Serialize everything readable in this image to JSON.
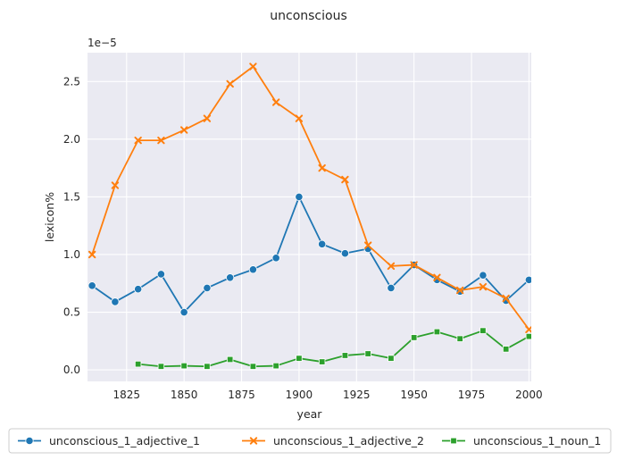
{
  "chart_data": {
    "type": "line",
    "title": "unconscious",
    "xlabel": "year",
    "ylabel": "lexicon%",
    "y_scale_label": "1e−5",
    "xlim": [
      1808,
      2001
    ],
    "ylim": [
      -0.1,
      2.75
    ],
    "xticks": [
      1825,
      1850,
      1875,
      1900,
      1925,
      1950,
      1975,
      2000
    ],
    "xtick_labels": [
      "1825",
      "1850",
      "1875",
      "1900",
      "1925",
      "1950",
      "1975",
      "2000"
    ],
    "yticks": [
      0.0,
      0.5,
      1.0,
      1.5,
      2.0,
      2.5
    ],
    "ytick_labels": [
      "0.0",
      "0.5",
      "1.0",
      "1.5",
      "2.0",
      "2.5"
    ],
    "grid": true,
    "legend_position": "bottom-center",
    "background": "#eaeaf2",
    "series": [
      {
        "name": "unconscious_1_adjective_1",
        "color": "#1f77b4",
        "marker": "circle",
        "x": [
          1810,
          1820,
          1830,
          1840,
          1850,
          1860,
          1870,
          1880,
          1890,
          1900,
          1910,
          1920,
          1930,
          1940,
          1950,
          1960,
          1970,
          1980,
          1990,
          2000
        ],
        "values": [
          0.73,
          0.59,
          0.7,
          0.83,
          0.5,
          0.71,
          0.8,
          0.87,
          0.97,
          1.5,
          1.09,
          1.01,
          1.05,
          0.71,
          0.91,
          0.78,
          0.68,
          0.82,
          0.6,
          0.78
        ]
      },
      {
        "name": "unconscious_1_adjective_2",
        "color": "#ff7f0e",
        "marker": "x",
        "x": [
          1810,
          1820,
          1830,
          1840,
          1850,
          1860,
          1870,
          1880,
          1890,
          1900,
          1910,
          1920,
          1930,
          1940,
          1950,
          1960,
          1970,
          1980,
          1990,
          2000
        ],
        "values": [
          1.0,
          1.6,
          1.99,
          1.99,
          2.08,
          2.18,
          2.48,
          2.63,
          2.32,
          2.18,
          1.75,
          1.65,
          1.08,
          0.9,
          0.91,
          0.8,
          0.69,
          0.72,
          0.62,
          0.35
        ]
      },
      {
        "name": "unconscious_1_noun_1",
        "color": "#2ca02c",
        "marker": "square",
        "x": [
          1830,
          1840,
          1850,
          1860,
          1870,
          1880,
          1890,
          1900,
          1910,
          1920,
          1930,
          1940,
          1950,
          1960,
          1970,
          1980,
          1990,
          2000
        ],
        "values": [
          0.05,
          0.03,
          0.035,
          0.03,
          0.09,
          0.03,
          0.035,
          0.1,
          0.07,
          0.125,
          0.14,
          0.1,
          0.28,
          0.33,
          0.27,
          0.34,
          0.18,
          0.29
        ]
      }
    ]
  }
}
